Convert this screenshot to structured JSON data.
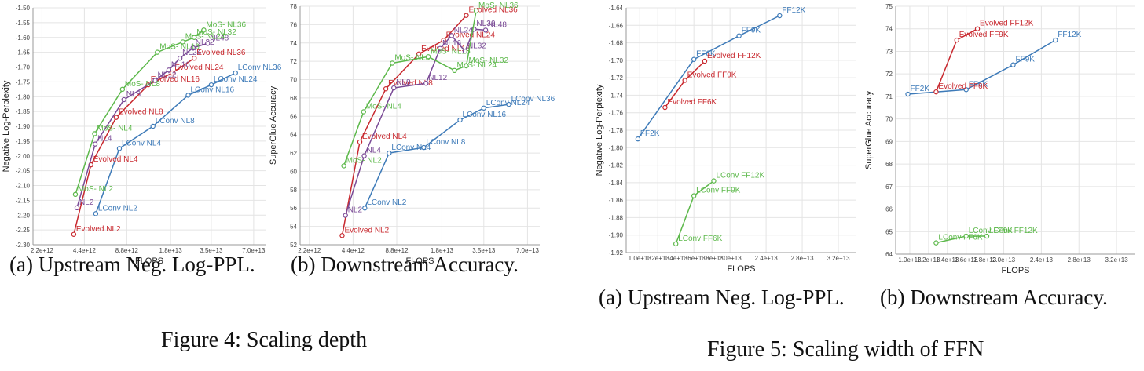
{
  "figures": [
    {
      "caption": "Figure 4: Scaling depth"
    },
    {
      "caption": "Figure 5: Scaling width of FFN"
    }
  ],
  "chart_data": [
    {
      "type": "line",
      "caption": "(a) Upstream Neg. Log-PPL.",
      "xlabel": "FLOPS",
      "ylabel": "Negative Log-Perplexity",
      "x_scale": "log",
      "xlim": [
        1900000000000.0,
        85000000000000.0
      ],
      "ylim": [
        -2.3,
        -1.5
      ],
      "x_ticks": [
        {
          "v": 2200000000000.0,
          "l": "2.2e+12"
        },
        {
          "v": 4400000000000.0,
          "l": "4.4e+12"
        },
        {
          "v": 8800000000000.0,
          "l": "8.8e+12"
        },
        {
          "v": 18000000000000.0,
          "l": "1.8e+13"
        },
        {
          "v": 35000000000000.0,
          "l": "3.5e+13"
        },
        {
          "v": 70000000000000.0,
          "l": "7.0e+13"
        }
      ],
      "y_ticks": [
        {
          "v": -2.3,
          "l": "-2.30"
        },
        {
          "v": -2.25,
          "l": "-2.25"
        },
        {
          "v": -2.2,
          "l": "-2.20"
        },
        {
          "v": -2.15,
          "l": "-2.15"
        },
        {
          "v": -2.1,
          "l": "-2.10"
        },
        {
          "v": -2.05,
          "l": "-2.05"
        },
        {
          "v": -2.0,
          "l": "-2.00"
        },
        {
          "v": -1.95,
          "l": "-1.95"
        },
        {
          "v": -1.9,
          "l": "-1.90"
        },
        {
          "v": -1.85,
          "l": "-1.85"
        },
        {
          "v": -1.8,
          "l": "-1.80"
        },
        {
          "v": -1.75,
          "l": "-1.75"
        },
        {
          "v": -1.7,
          "l": "-1.70"
        },
        {
          "v": -1.65,
          "l": "-1.65"
        },
        {
          "v": -1.6,
          "l": "-1.60"
        },
        {
          "v": -1.55,
          "l": "-1.55"
        },
        {
          "v": -1.5,
          "l": "-1.50"
        }
      ],
      "series": [
        {
          "color": "#3d7ab8",
          "points": [
            {
              "x": 5300000000000.0,
              "y": -2.195,
              "label": "LConv NL2"
            },
            {
              "x": 7800000000000.0,
              "y": -1.975,
              "label": "LConv NL4"
            },
            {
              "x": 13500000000000.0,
              "y": -1.9,
              "label": "LConv NL8"
            },
            {
              "x": 24000000000000.0,
              "y": -1.795,
              "label": "LConv NL16"
            },
            {
              "x": 35000000000000.0,
              "y": -1.76,
              "label": "LConv NL24"
            },
            {
              "x": 52000000000000.0,
              "y": -1.72,
              "label": "LConv NL36"
            }
          ]
        },
        {
          "color": "#c8282e",
          "points": [
            {
              "x": 3700000000000.0,
              "y": -2.265,
              "label": "Evolved NL2"
            },
            {
              "x": 4900000000000.0,
              "y": -2.03,
              "label": "Evolved NL4"
            },
            {
              "x": 7400000000000.0,
              "y": -1.87,
              "label": "Evolved NL8"
            },
            {
              "x": 12500000000000.0,
              "y": -1.76,
              "label": "Evolved NL16"
            },
            {
              "x": 18500000000000.0,
              "y": -1.72,
              "label": "Evolved NL24"
            },
            {
              "x": 26500000000000.0,
              "y": -1.67,
              "label": "Evolved NL36"
            }
          ]
        },
        {
          "color": "#7a4a96",
          "points": [
            {
              "x": 3900000000000.0,
              "y": -2.175,
              "label": "NL2"
            },
            {
              "x": 5250000000000.0,
              "y": -1.96,
              "label": "NL4"
            },
            {
              "x": 8400000000000.0,
              "y": -1.81,
              "label": "NL8"
            },
            {
              "x": 14000000000000.0,
              "y": -1.745,
              "label": "NL12"
            },
            {
              "x": 17500000000000.0,
              "y": -1.71,
              "label": "NL16"
            },
            {
              "x": 21000000000000.0,
              "y": -1.67,
              "label": "NL24"
            },
            {
              "x": 26000000000000.0,
              "y": -1.635,
              "label": "NL32"
            },
            {
              "x": 33000000000000.0,
              "y": -1.62,
              "label": "NL48"
            }
          ]
        },
        {
          "color": "#5cb84a",
          "points": [
            {
              "x": 3800000000000.0,
              "y": -2.13,
              "label": "MoS- NL2"
            },
            {
              "x": 5200000000000.0,
              "y": -1.925,
              "label": "MoS- NL4"
            },
            {
              "x": 8200000000000.0,
              "y": -1.775,
              "label": "MoS- NL8"
            },
            {
              "x": 14500000000000.0,
              "y": -1.65,
              "label": "MoS- NL16"
            },
            {
              "x": 22000000000000.0,
              "y": -1.615,
              "label": "MoS- NL24"
            },
            {
              "x": 26500000000000.0,
              "y": -1.6,
              "label": "MoS- NL32"
            },
            {
              "x": 31000000000000.0,
              "y": -1.575,
              "label": "MoS- NL36"
            }
          ]
        }
      ]
    },
    {
      "type": "line",
      "caption": "(b) Downstream Accuracy.",
      "xlabel": "FLOPS",
      "ylabel": "SuperGlue Accuracy",
      "x_scale": "log",
      "xlim": [
        1900000000000.0,
        85000000000000.0
      ],
      "ylim": [
        52,
        78
      ],
      "x_ticks": [
        {
          "v": 2200000000000.0,
          "l": "2.2e+12"
        },
        {
          "v": 4400000000000.0,
          "l": "4.4e+12"
        },
        {
          "v": 8800000000000.0,
          "l": "8.8e+12"
        },
        {
          "v": 18000000000000.0,
          "l": "1.8e+13"
        },
        {
          "v": 35000000000000.0,
          "l": "3.5e+13"
        },
        {
          "v": 70000000000000.0,
          "l": "7.0e+13"
        }
      ],
      "y_ticks": [
        {
          "v": 52,
          "l": "52"
        },
        {
          "v": 54,
          "l": "54"
        },
        {
          "v": 56,
          "l": "56"
        },
        {
          "v": 58,
          "l": "58"
        },
        {
          "v": 60,
          "l": "60"
        },
        {
          "v": 62,
          "l": "62"
        },
        {
          "v": 64,
          "l": "64"
        },
        {
          "v": 66,
          "l": "66"
        },
        {
          "v": 68,
          "l": "68"
        },
        {
          "v": 70,
          "l": "70"
        },
        {
          "v": 72,
          "l": "72"
        },
        {
          "v": 74,
          "l": "74"
        },
        {
          "v": 76,
          "l": "76"
        },
        {
          "v": 78,
          "l": "78"
        }
      ],
      "series": [
        {
          "color": "#3d7ab8",
          "points": [
            {
              "x": 5300000000000.0,
              "y": 56.0,
              "label": "LConv NL2"
            },
            {
              "x": 7800000000000.0,
              "y": 62.0,
              "label": "LConv NL4"
            },
            {
              "x": 13500000000000.0,
              "y": 62.6,
              "label": "LConv NL8"
            },
            {
              "x": 24000000000000.0,
              "y": 65.6,
              "label": "LConv NL16"
            },
            {
              "x": 35000000000000.0,
              "y": 66.9,
              "label": "LConv NL24"
            },
            {
              "x": 52000000000000.0,
              "y": 67.3,
              "label": "LConv NL36"
            }
          ]
        },
        {
          "color": "#c8282e",
          "points": [
            {
              "x": 3700000000000.0,
              "y": 53.0,
              "label": "Evolved NL2"
            },
            {
              "x": 4900000000000.0,
              "y": 63.2,
              "label": "Evolved NL4"
            },
            {
              "x": 7400000000000.0,
              "y": 69.0,
              "label": "Evolved NL8"
            },
            {
              "x": 12500000000000.0,
              "y": 72.8,
              "label": "Evolved NL16"
            },
            {
              "x": 18500000000000.0,
              "y": 74.3,
              "label": "Evolved NL24"
            },
            {
              "x": 26500000000000.0,
              "y": 77.0,
              "label": "Evolved NL36"
            }
          ]
        },
        {
          "color": "#7a4a96",
          "points": [
            {
              "x": 3900000000000.0,
              "y": 55.2,
              "label": "NL2"
            },
            {
              "x": 5250000000000.0,
              "y": 61.7,
              "label": "NL4"
            },
            {
              "x": 8400000000000.0,
              "y": 69.1,
              "label": "NL8"
            },
            {
              "x": 14000000000000.0,
              "y": 69.6,
              "label": "NL12"
            },
            {
              "x": 17500000000000.0,
              "y": 73.4,
              "label": "NL16"
            },
            {
              "x": 21000000000000.0,
              "y": 74.8,
              "label": "NL24"
            },
            {
              "x": 26000000000000.0,
              "y": 73.1,
              "label": "NL32"
            },
            {
              "x": 30000000000000.0,
              "y": 75.5,
              "label": "NL36"
            },
            {
              "x": 36000000000000.0,
              "y": 75.4,
              "label": "NL48"
            }
          ]
        },
        {
          "color": "#5cb84a",
          "points": [
            {
              "x": 3800000000000.0,
              "y": 60.6,
              "label": "MoS- NL2"
            },
            {
              "x": 5200000000000.0,
              "y": 66.5,
              "label": "MoS- NL4"
            },
            {
              "x": 8200000000000.0,
              "y": 71.8,
              "label": "MoS- NL8"
            },
            {
              "x": 14500000000000.0,
              "y": 72.5,
              "label": "MoS- NL16"
            },
            {
              "x": 22000000000000.0,
              "y": 71.0,
              "label": "MoS- NL24"
            },
            {
              "x": 26500000000000.0,
              "y": 71.5,
              "label": "MoS- NL32"
            },
            {
              "x": 31000000000000.0,
              "y": 77.5,
              "label": "MoS- NL36"
            }
          ]
        }
      ]
    },
    {
      "type": "line",
      "caption": "(a) Upstream Neg. Log-PPL.",
      "xlabel": "FLOPS",
      "ylabel": "Negative Log-Perplexity",
      "x_scale": "linear",
      "xlim": [
        8500000000000.0,
        34000000000000.0
      ],
      "ylim": [
        -1.92,
        -1.64
      ],
      "x_ticks": [
        {
          "v": 10000000000000.0,
          "l": "1.0e+13"
        },
        {
          "v": 12000000000000.0,
          "l": "1.2e+13"
        },
        {
          "v": 14000000000000.0,
          "l": "1.4e+13"
        },
        {
          "v": 16000000000000.0,
          "l": "1.6e+13"
        },
        {
          "v": 18000000000000.0,
          "l": "1.8e+13"
        },
        {
          "v": 20000000000000.0,
          "l": "2.0e+13"
        },
        {
          "v": 24000000000000.0,
          "l": "2.4e+13"
        },
        {
          "v": 28000000000000.0,
          "l": "2.8e+13"
        },
        {
          "v": 32000000000000.0,
          "l": "3.2e+13"
        }
      ],
      "y_ticks": [
        {
          "v": -1.92,
          "l": "-1.92"
        },
        {
          "v": -1.9,
          "l": "-1.90"
        },
        {
          "v": -1.88,
          "l": "-1.88"
        },
        {
          "v": -1.86,
          "l": "-1.86"
        },
        {
          "v": -1.84,
          "l": "-1.84"
        },
        {
          "v": -1.82,
          "l": "-1.82"
        },
        {
          "v": -1.8,
          "l": "-1.80"
        },
        {
          "v": -1.78,
          "l": "-1.78"
        },
        {
          "v": -1.76,
          "l": "-1.76"
        },
        {
          "v": -1.74,
          "l": "-1.74"
        },
        {
          "v": -1.72,
          "l": "-1.72"
        },
        {
          "v": -1.7,
          "l": "-1.70"
        },
        {
          "v": -1.68,
          "l": "-1.68"
        },
        {
          "v": -1.66,
          "l": "-1.66"
        },
        {
          "v": -1.64,
          "l": "-1.64"
        }
      ],
      "series": [
        {
          "color": "#3d7ab8",
          "points": [
            {
              "x": 9800000000000.0,
              "y": -1.79,
              "label": "FF2K"
            },
            {
              "x": 16000000000000.0,
              "y": -1.699,
              "label": "FF6K"
            },
            {
              "x": 21000000000000.0,
              "y": -1.672,
              "label": "FF9K"
            },
            {
              "x": 25500000000000.0,
              "y": -1.649,
              "label": "FF12K"
            }
          ]
        },
        {
          "color": "#c8282e",
          "points": [
            {
              "x": 12800000000000.0,
              "y": -1.754,
              "label": "Evolved FF6K"
            },
            {
              "x": 15000000000000.0,
              "y": -1.723,
              "label": "Evolved FF9K"
            },
            {
              "x": 17200000000000.0,
              "y": -1.701,
              "label": "Evolved FF12K"
            }
          ]
        },
        {
          "color": "#5cb84a",
          "points": [
            {
              "x": 14000000000000.0,
              "y": -1.91,
              "label": "LConv FF6K"
            },
            {
              "x": 16000000000000.0,
              "y": -1.855,
              "label": "LConv FF9K"
            },
            {
              "x": 18200000000000.0,
              "y": -1.838,
              "label": "LConv FF12K"
            }
          ]
        }
      ]
    },
    {
      "type": "line",
      "caption": "(b) Downstream Accuracy.",
      "xlabel": "FLOPS",
      "ylabel": "SuperGlue Accuracy",
      "x_scale": "linear",
      "xlim": [
        8500000000000.0,
        34000000000000.0
      ],
      "ylim": [
        64,
        75
      ],
      "x_ticks": [
        {
          "v": 10000000000000.0,
          "l": "1.0e+13"
        },
        {
          "v": 12000000000000.0,
          "l": "1.2e+13"
        },
        {
          "v": 14000000000000.0,
          "l": "1.4e+13"
        },
        {
          "v": 16000000000000.0,
          "l": "1.6e+13"
        },
        {
          "v": 18000000000000.0,
          "l": "1.8e+13"
        },
        {
          "v": 20000000000000.0,
          "l": "2.0e+13"
        },
        {
          "v": 24000000000000.0,
          "l": "2.4e+13"
        },
        {
          "v": 28000000000000.0,
          "l": "2.8e+13"
        },
        {
          "v": 32000000000000.0,
          "l": "3.2e+13"
        }
      ],
      "y_ticks": [
        {
          "v": 64,
          "l": "64"
        },
        {
          "v": 65,
          "l": "65"
        },
        {
          "v": 66,
          "l": "66"
        },
        {
          "v": 67,
          "l": "67"
        },
        {
          "v": 68,
          "l": "68"
        },
        {
          "v": 69,
          "l": "69"
        },
        {
          "v": 70,
          "l": "70"
        },
        {
          "v": 71,
          "l": "71"
        },
        {
          "v": 72,
          "l": "72"
        },
        {
          "v": 73,
          "l": "73"
        },
        {
          "v": 74,
          "l": "74"
        },
        {
          "v": 75,
          "l": "75"
        }
      ],
      "series": [
        {
          "color": "#3d7ab8",
          "points": [
            {
              "x": 9800000000000.0,
              "y": 71.1,
              "label": "FF2K"
            },
            {
              "x": 16000000000000.0,
              "y": 71.3,
              "label": "FF6K"
            },
            {
              "x": 21000000000000.0,
              "y": 72.4,
              "label": "FF9K"
            },
            {
              "x": 25500000000000.0,
              "y": 73.5,
              "label": "FF12K"
            }
          ]
        },
        {
          "color": "#c8282e",
          "points": [
            {
              "x": 12800000000000.0,
              "y": 71.2,
              "label": "Evolved FF6K"
            },
            {
              "x": 15000000000000.0,
              "y": 73.5,
              "label": "Evolved FF9K"
            },
            {
              "x": 17200000000000.0,
              "y": 74.0,
              "label": "Evolved FF12K"
            }
          ]
        },
        {
          "color": "#5cb84a",
          "points": [
            {
              "x": 12800000000000.0,
              "y": 64.5,
              "label": "LConv FF6K"
            },
            {
              "x": 16000000000000.0,
              "y": 64.8,
              "label": "LConv FF9K"
            },
            {
              "x": 18200000000000.0,
              "y": 64.8,
              "label": "LConv FF12K"
            }
          ]
        }
      ]
    }
  ]
}
